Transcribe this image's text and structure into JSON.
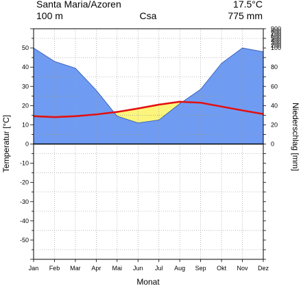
{
  "chart_data": {
    "type": "climate-diagram",
    "station": "Santa Maria/Azoren",
    "mean_temperature": "17.5°C",
    "elevation": "100 m",
    "climate_class": "Csa",
    "annual_precipitation": "775 mm",
    "xlabel": "Monat",
    "ylabel_left": "Temperatur [°C]",
    "ylabel_right": "Niederschlag [mm]",
    "months": [
      "Jan",
      "Feb",
      "Mar",
      "Apr",
      "Mai",
      "Jun",
      "Jul",
      "Aug",
      "Sep",
      "Okt",
      "Nov",
      "Dez"
    ],
    "temperature": [
      14.5,
      14.0,
      14.5,
      15.4,
      16.7,
      18.5,
      20.5,
      22.0,
      21.5,
      19.5,
      17.5,
      15.6
    ],
    "precipitation": [
      100,
      86,
      79,
      56,
      29,
      22,
      25,
      42,
      57,
      84,
      100,
      96
    ],
    "temp_ticks": [
      50,
      40,
      30,
      20,
      10,
      0,
      -10,
      -20,
      -30,
      -40,
      -50
    ],
    "temp_range": [
      -60,
      60
    ],
    "precip_ticks": [
      900,
      800,
      700,
      600,
      500,
      400,
      300,
      200,
      100,
      80,
      60,
      40,
      20,
      0
    ],
    "grid": true,
    "colors": {
      "humid": "#6f9cf2",
      "arid": "#fbf57c",
      "temperature_line": "#e31010",
      "precipitation_edge": "#2a50b0",
      "grid": "#9a9a9a"
    }
  }
}
